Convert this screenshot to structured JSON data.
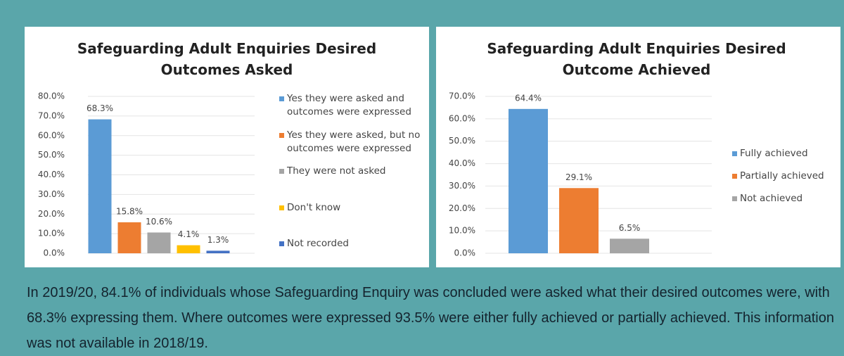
{
  "chart_data": [
    {
      "type": "bar",
      "title": "Safeguarding Adult Enquiries Desired Outcomes Asked",
      "categories": [
        "Yes they were asked and outcomes were expressed",
        "Yes they were asked, but no outcomes were expressed",
        "They were not asked",
        "Don't know",
        "Not recorded"
      ],
      "values": [
        68.3,
        15.8,
        10.6,
        4.1,
        1.3
      ],
      "value_labels": [
        "68.3%",
        "15.8%",
        "10.6%",
        "4.1%",
        "1.3%"
      ],
      "colors": [
        "#5b9bd5",
        "#ed7d31",
        "#a5a5a5",
        "#ffc000",
        "#4472c4"
      ],
      "ylim": [
        0,
        80
      ],
      "yticks": [
        {
          "value": 0,
          "label": "0.0%"
        },
        {
          "value": 10,
          "label": "10.0%"
        },
        {
          "value": 20,
          "label": "20.0%"
        },
        {
          "value": 30,
          "label": "30.0%"
        },
        {
          "value": 40,
          "label": "40.0%"
        },
        {
          "value": 50,
          "label": "50.0%"
        },
        {
          "value": 60,
          "label": "60.0%"
        },
        {
          "value": 70,
          "label": "70.0%"
        },
        {
          "value": 80,
          "label": "80.0%"
        }
      ],
      "grid": true,
      "legend": "right"
    },
    {
      "type": "bar",
      "title": "Safeguarding Adult Enquiries Desired Outcome  Achieved",
      "categories": [
        "Fully achieved",
        "Partially achieved",
        "Not achieved"
      ],
      "values": [
        64.4,
        29.1,
        6.5
      ],
      "value_labels": [
        "64.4%",
        "29.1%",
        "6.5%"
      ],
      "colors": [
        "#5b9bd5",
        "#ed7d31",
        "#a5a5a5"
      ],
      "ylim": [
        0,
        70
      ],
      "yticks": [
        {
          "value": 0,
          "label": "0.0%"
        },
        {
          "value": 10,
          "label": "10.0%"
        },
        {
          "value": 20,
          "label": "20.0%"
        },
        {
          "value": 30,
          "label": "30.0%"
        },
        {
          "value": 40,
          "label": "40.0%"
        },
        {
          "value": 50,
          "label": "50.0%"
        },
        {
          "value": 60,
          "label": "60.0%"
        },
        {
          "value": 70,
          "label": "70.0%"
        }
      ],
      "grid": true,
      "legend": "right"
    }
  ],
  "caption": "In 2019/20,  84.1% of individuals whose Safeguarding Enquiry was concluded were asked what their desired outcomes were, with 68.3% expressing them. Where outcomes were expressed 93.5% were either fully achieved or partially achieved. This information was not available in 2018/19."
}
